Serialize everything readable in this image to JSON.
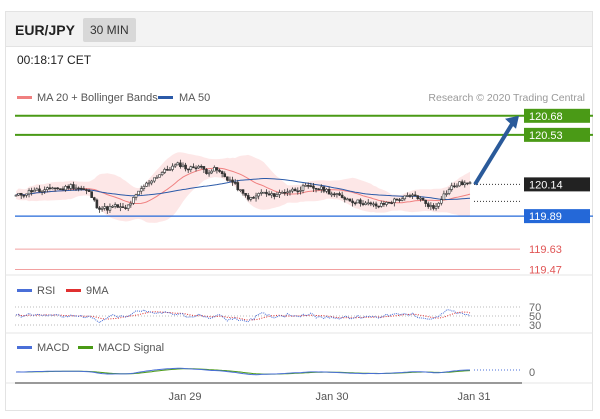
{
  "header": {
    "pair": "EUR/JPY",
    "timeframe": "30 MIN"
  },
  "time_label": "00:18:17 CET",
  "legend": {
    "ma20": "MA 20 + Bollinger Bands",
    "ma50": "MA 50",
    "credit": "Research © 2020 Trading Central",
    "rsi": "RSI",
    "rsi_ma": "9MA",
    "macd": "MACD",
    "macd_signal": "MACD Signal"
  },
  "colors": {
    "ma20": "#f08080",
    "ma50": "#2b5aa8",
    "bollinger_fill": "#fde3e3",
    "resistance": "#4a9a16",
    "support": "#e05555",
    "pivot": "#2468d8",
    "last": "#222222",
    "rsi": "#4a6fd8",
    "rsi_ma": "#e03030",
    "macd": "#4a6fd8",
    "macd_signal": "#4a9a16",
    "arrow": "#2a5a9a"
  },
  "chart_data": [
    {
      "type": "line",
      "title": "",
      "x_tick_labels": [
        "Jan 29",
        "Jan 30",
        "Jan 31"
      ],
      "levels": [
        {
          "value": 120.68,
          "label": "120.68",
          "kind": "resistance"
        },
        {
          "value": 120.53,
          "label": "120.53",
          "kind": "resistance"
        },
        {
          "value": 120.14,
          "label": "120.14",
          "kind": "last"
        },
        {
          "value": 119.89,
          "label": "119.89",
          "kind": "pivot"
        },
        {
          "value": 119.63,
          "label": "119.63",
          "kind": "support"
        },
        {
          "value": 119.47,
          "label": "119.47",
          "kind": "support"
        }
      ],
      "price_path": [
        120.05,
        120.07,
        120.1,
        120.08,
        120.12,
        120.1,
        120.13,
        120.11,
        120.08,
        119.96,
        119.95,
        119.97,
        119.94,
        120.03,
        120.12,
        120.18,
        120.23,
        120.27,
        120.3,
        120.26,
        120.29,
        120.24,
        120.26,
        120.2,
        120.15,
        120.06,
        120.02,
        120.08,
        120.05,
        120.07,
        120.09,
        120.1,
        120.12,
        120.11,
        120.1,
        120.06,
        120.04,
        120.01,
        120.0,
        119.98,
        119.97,
        120.0,
        120.02,
        120.04,
        120.05,
        120.0,
        119.95,
        120.05,
        120.12,
        120.15,
        120.14
      ],
      "ylim": [
        119.45,
        120.71
      ]
    },
    {
      "type": "line",
      "series": [
        {
          "name": "RSI"
        },
        {
          "name": "9MA"
        }
      ],
      "y_ticks": [
        "70",
        "50",
        "30"
      ]
    },
    {
      "type": "line",
      "series": [
        {
          "name": "MACD"
        },
        {
          "name": "MACD Signal"
        }
      ],
      "y_ticks": [
        "0"
      ]
    }
  ]
}
